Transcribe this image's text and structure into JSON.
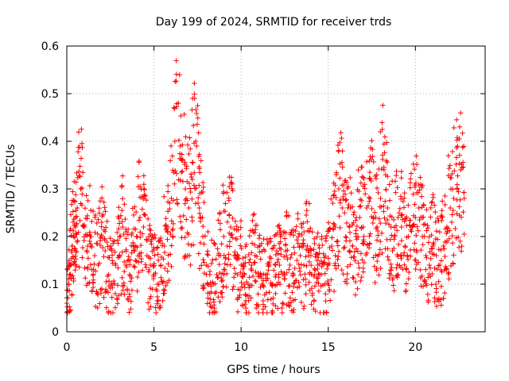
{
  "chart_data": {
    "type": "scatter",
    "title": "Day 199 of 2024, SRMTID for receiver trds",
    "xlabel": "GPS time / hours",
    "ylabel": "SRMTID / TECUs",
    "xlim": [
      0,
      24
    ],
    "ylim": [
      0,
      0.6
    ],
    "xticks": [
      0,
      5,
      10,
      15,
      20
    ],
    "yticks": [
      0,
      0.1,
      0.2,
      0.3,
      0.4,
      0.5,
      0.6
    ],
    "xtick_labels": [
      "0",
      "5",
      "10",
      "15",
      "20"
    ],
    "ytick_labels": [
      "0",
      "0.1",
      "0.2",
      "0.3",
      "0.4",
      "0.5",
      "0.6"
    ],
    "grid": true,
    "marker": "+",
    "marker_color": "#ff0000",
    "x_range_of_points": [
      0,
      22.8
    ],
    "series": [
      {
        "name": "SRMTID",
        "color": "#ff0000",
        "x": [
          0.0,
          0.1,
          0.2,
          0.3,
          0.4,
          0.5,
          0.6,
          0.8,
          1.0,
          1.2,
          1.4,
          1.6,
          1.8,
          2.0,
          2.2,
          2.4,
          2.6,
          2.8,
          3.0,
          3.2,
          3.4,
          3.6,
          3.8,
          4.0,
          4.2,
          4.4,
          4.6,
          4.8,
          5.0,
          5.2,
          5.4,
          5.6,
          5.8,
          6.0,
          6.2,
          6.4,
          6.6,
          6.8,
          7.0,
          7.2,
          7.4,
          7.6,
          7.8,
          8.0,
          8.2,
          8.4,
          8.6,
          8.8,
          9.0,
          9.2,
          9.4,
          9.6,
          9.8,
          10.0,
          10.2,
          10.4,
          10.6,
          10.8,
          11.0,
          11.2,
          11.4,
          11.6,
          11.8,
          12.0,
          12.2,
          12.4,
          12.6,
          12.8,
          13.0,
          13.2,
          13.4,
          13.6,
          13.8,
          14.0,
          14.2,
          14.4,
          14.6,
          14.8,
          15.0,
          15.2,
          15.4,
          15.6,
          15.8,
          16.0,
          16.2,
          16.4,
          16.6,
          16.8,
          17.0,
          17.2,
          17.4,
          17.6,
          17.8,
          18.0,
          18.2,
          18.4,
          18.6,
          18.8,
          19.0,
          19.2,
          19.4,
          19.6,
          19.8,
          20.0,
          20.2,
          20.4,
          20.6,
          20.8,
          21.0,
          21.2,
          21.4,
          21.6,
          21.8,
          22.0,
          22.2,
          22.4,
          22.6,
          22.8
        ],
        "y": [
          0.06,
          0.1,
          0.14,
          0.18,
          0.2,
          0.22,
          0.26,
          0.3,
          0.22,
          0.18,
          0.2,
          0.16,
          0.14,
          0.2,
          0.17,
          0.12,
          0.1,
          0.14,
          0.16,
          0.22,
          0.14,
          0.12,
          0.18,
          0.2,
          0.24,
          0.22,
          0.16,
          0.14,
          0.12,
          0.1,
          0.14,
          0.18,
          0.22,
          0.28,
          0.4,
          0.48,
          0.36,
          0.3,
          0.26,
          0.32,
          0.4,
          0.26,
          0.2,
          0.14,
          0.12,
          0.1,
          0.12,
          0.16,
          0.2,
          0.18,
          0.22,
          0.16,
          0.12,
          0.14,
          0.12,
          0.1,
          0.14,
          0.16,
          0.12,
          0.1,
          0.12,
          0.14,
          0.1,
          0.12,
          0.14,
          0.12,
          0.16,
          0.14,
          0.12,
          0.15,
          0.16,
          0.14,
          0.18,
          0.16,
          0.12,
          0.14,
          0.12,
          0.1,
          0.14,
          0.18,
          0.22,
          0.3,
          0.26,
          0.2,
          0.22,
          0.18,
          0.2,
          0.24,
          0.22,
          0.26,
          0.28,
          0.24,
          0.22,
          0.28,
          0.34,
          0.26,
          0.22,
          0.2,
          0.24,
          0.22,
          0.18,
          0.2,
          0.22,
          0.24,
          0.26,
          0.2,
          0.16,
          0.14,
          0.18,
          0.16,
          0.14,
          0.18,
          0.22,
          0.26,
          0.28,
          0.3,
          0.34,
          0.28
        ]
      }
    ]
  }
}
